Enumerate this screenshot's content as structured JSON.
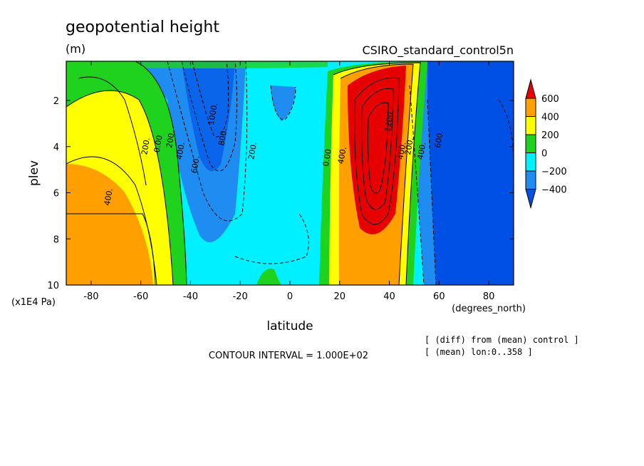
{
  "chart_data": {
    "type": "heatmap",
    "title": "geopotential height",
    "units": "(m)",
    "subtitle_right": "CSIRO_standard_control5n",
    "xlabel": "latitude",
    "x_units": "(degrees_north)",
    "ylabel": "plev",
    "y_units": "(x1E4 Pa)",
    "xlim": [
      -90,
      90
    ],
    "ylim": [
      10,
      0.3
    ],
    "x_ticks": [
      "-80",
      "-60",
      "-40",
      "-20",
      "0",
      "20",
      "40",
      "60",
      "80"
    ],
    "x_tick_values": [
      -80,
      -60,
      -40,
      -20,
      0,
      20,
      40,
      60,
      80
    ],
    "y_ticks": [
      "2",
      "4",
      "6",
      "8",
      "10"
    ],
    "y_tick_values": [
      2,
      4,
      6,
      8,
      10
    ],
    "contour_interval_text": "CONTOUR INTERVAL = 1.000E+02",
    "notes": [
      "[ (diff) from (mean) control ]",
      "[ (mean) lon:0..358 ]"
    ],
    "colorbar": {
      "labels": [
        "600",
        "400",
        "200",
        "0",
        "−200",
        "−400"
      ],
      "label_values": [
        600,
        400,
        200,
        0,
        -200,
        -400
      ],
      "colors": [
        "#e60000",
        "#ff9f00",
        "#ffff00",
        "#1ed21e",
        "#00f0ff",
        "#1e8cf0",
        "#0050e6"
      ]
    },
    "contour_labels": [
      {
        "text": "400.",
        "lat": -72,
        "p": 6.2
      },
      {
        "text": "200.",
        "lat": -57,
        "p": 4.0
      },
      {
        "text": "0.00",
        "lat": -52,
        "p": 3.9
      },
      {
        "text": "200.",
        "lat": -47,
        "p": 3.7
      },
      {
        "text": "400.",
        "lat": -43,
        "p": 4.2
      },
      {
        "text": "600.",
        "lat": -37,
        "p": 4.8
      },
      {
        "text": "1000.",
        "lat": -30,
        "p": 2.6
      },
      {
        "text": "800.",
        "lat": -26,
        "p": 3.6
      },
      {
        "text": "200.",
        "lat": -14,
        "p": 4.2
      },
      {
        "text": "0.00",
        "lat": 16,
        "p": 4.5
      },
      {
        "text": "400.",
        "lat": 22,
        "p": 4.4
      },
      {
        "text": "1200.",
        "lat": 41,
        "p": 2.9
      },
      {
        "text": "400.",
        "lat": 46,
        "p": 4.2
      },
      {
        "text": "200.",
        "lat": 49,
        "p": 4.0
      },
      {
        "text": "400.",
        "lat": 54,
        "p": 4.2
      },
      {
        "text": "600.",
        "lat": 61,
        "p": 3.7
      }
    ]
  }
}
